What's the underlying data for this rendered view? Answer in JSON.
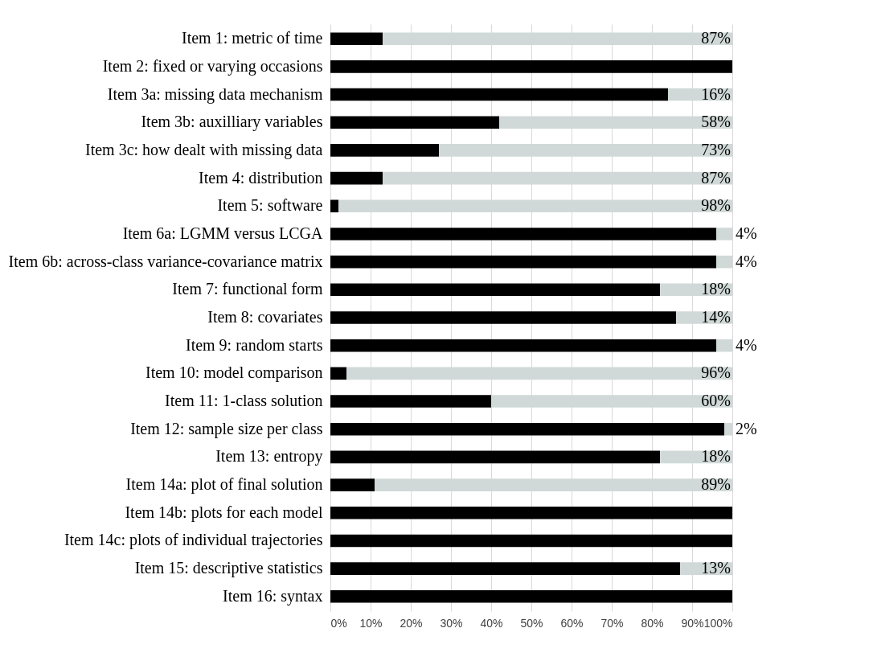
{
  "chart_data": {
    "type": "bar",
    "orientation": "horizontal",
    "stacked": true,
    "categories": [
      "Item 1: metric of time",
      "Item 2: fixed or varying occasions",
      "Item 3a: missing data mechanism",
      "Item 3b: auxilliary variables",
      "Item 3c: how dealt with missing data",
      "Item 4: distribution",
      "Item 5: software",
      "Item 6a: LGMM versus LCGA",
      "Item 6b: across-class variance-covariance matrix",
      "Item 7: functional form",
      "Item 8: covariates",
      "Item 9: random starts",
      "Item 10: model comparison",
      "Item 11: 1-class solution",
      "Item 12: sample size per class",
      "Item 13: entropy",
      "Item 14a: plot of final solution",
      "Item 14b: plots for each model",
      "Item 14c: plots of individual trajectories",
      "Item 15: descriptive statistics",
      "Item 16: syntax"
    ],
    "series": [
      {
        "color": "#000000",
        "values": [
          13,
          100,
          84,
          42,
          27,
          13,
          2,
          96,
          96,
          82,
          86,
          96,
          4,
          40,
          98,
          82,
          11,
          100,
          100,
          87,
          100
        ]
      },
      {
        "color": "#d0d9d7",
        "values": [
          87,
          0,
          16,
          58,
          73,
          87,
          98,
          4,
          4,
          18,
          14,
          4,
          96,
          60,
          2,
          18,
          89,
          0,
          0,
          13,
          0
        ],
        "value_labels": [
          "87%",
          null,
          "16%",
          "58%",
          "73%",
          "87%",
          "98%",
          "4%",
          "4%",
          "18%",
          "14%",
          "4%",
          "96%",
          "60%",
          "2%",
          "18%",
          "89%",
          null,
          null,
          "13%",
          null
        ]
      }
    ],
    "xlim": [
      0,
      100
    ],
    "xticks": [
      {
        "value": 0,
        "label": "0%"
      },
      {
        "value": 10,
        "label": "10%"
      },
      {
        "value": 20,
        "label": "20%"
      },
      {
        "value": 30,
        "label": "30%"
      },
      {
        "value": 40,
        "label": "40%"
      },
      {
        "value": 50,
        "label": "50%"
      },
      {
        "value": 60,
        "label": "60%"
      },
      {
        "value": 70,
        "label": "70%"
      },
      {
        "value": 80,
        "label": "80%"
      },
      {
        "value": 90,
        "label": "90%"
      },
      {
        "value": 100,
        "label": "100%"
      }
    ],
    "grid": "x",
    "legend": false
  }
}
